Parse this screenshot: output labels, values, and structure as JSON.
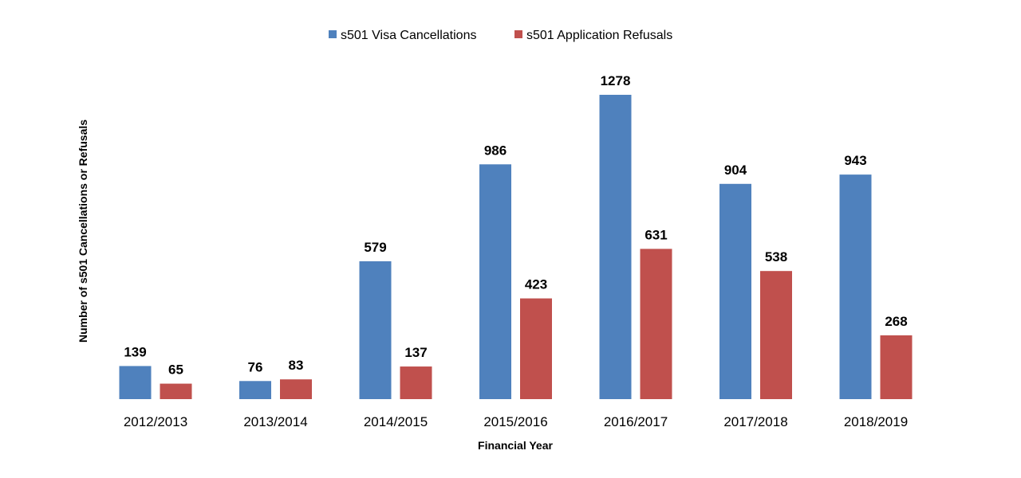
{
  "chart_data": {
    "type": "bar",
    "title": "",
    "xlabel": "Financial Year",
    "ylabel": "Number of s501 Cancellations or Refusals",
    "categories": [
      "2012/2013",
      "2013/2014",
      "2014/2015",
      "2015/2016",
      "2016/2017",
      "2017/2018",
      "2018/2019"
    ],
    "series": [
      {
        "name": "s501 Visa Cancellations",
        "color": "#4F81BD",
        "values": [
          139,
          76,
          579,
          986,
          1278,
          904,
          943
        ]
      },
      {
        "name": "s501 Application Refusals",
        "color": "#C0504D",
        "values": [
          65,
          83,
          137,
          423,
          631,
          538,
          268
        ]
      }
    ],
    "ylim": [
      0,
      1400
    ],
    "grid": false,
    "legend": "top-center",
    "data_labels": true
  }
}
